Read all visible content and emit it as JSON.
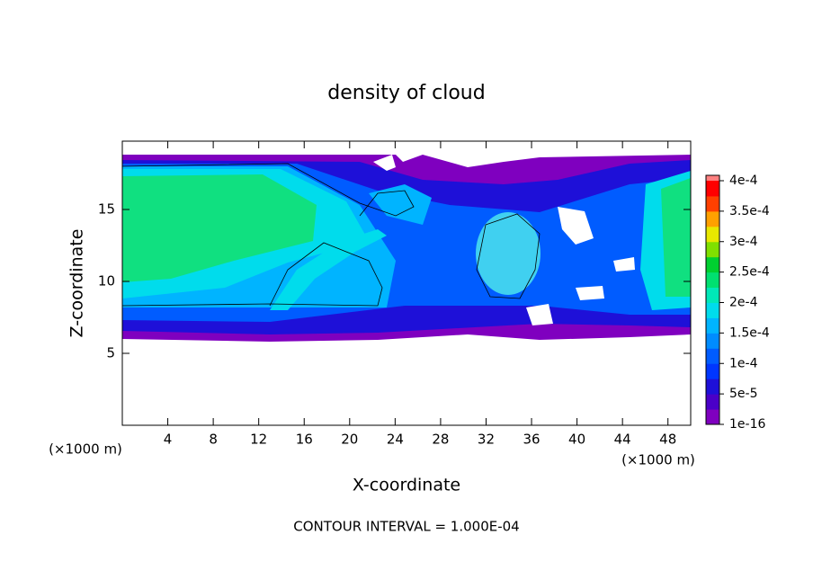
{
  "chart_data": {
    "type": "contour",
    "title": "density of cloud",
    "x_label": "X-coordinate",
    "y_label": "Z-coordinate",
    "y_unit": "(×1000 m)",
    "x_unit": "(×1000 m)",
    "annotation": "CONTOUR INTERVAL = 1.000E-04",
    "xlim": [
      0,
      50
    ],
    "xticks": [
      4,
      8,
      12,
      16,
      20,
      24,
      28,
      32,
      36,
      40,
      44,
      48
    ],
    "ylim": [
      0,
      19.75
    ],
    "yticks": [
      5,
      10,
      15
    ],
    "colorbar": {
      "ticks": [
        {
          "value": 1e-16,
          "label": "1e-16"
        },
        {
          "value": 5e-05,
          "label": "5e-5"
        },
        {
          "value": 0.0001,
          "label": "1e-4"
        },
        {
          "value": 0.00015,
          "label": "1.5e-4"
        },
        {
          "value": 0.0002,
          "label": "2e-4"
        },
        {
          "value": 0.00025,
          "label": "2.5e-4"
        },
        {
          "value": 0.0003,
          "label": "3e-4"
        },
        {
          "value": 0.00035,
          "label": "3.5e-4"
        },
        {
          "value": 0.0004,
          "label": "4e-4"
        }
      ],
      "colors": [
        "#7f00bf",
        "#4a00c8",
        "#1e10d8",
        "#0036ff",
        "#005cff",
        "#008cff",
        "#00b4ff",
        "#00dcec",
        "#00e8b8",
        "#00e070",
        "#00d030",
        "#80e000",
        "#e8e800",
        "#ffa000",
        "#ff4000",
        "#ff0000"
      ],
      "top_color": "#ff8080"
    }
  }
}
